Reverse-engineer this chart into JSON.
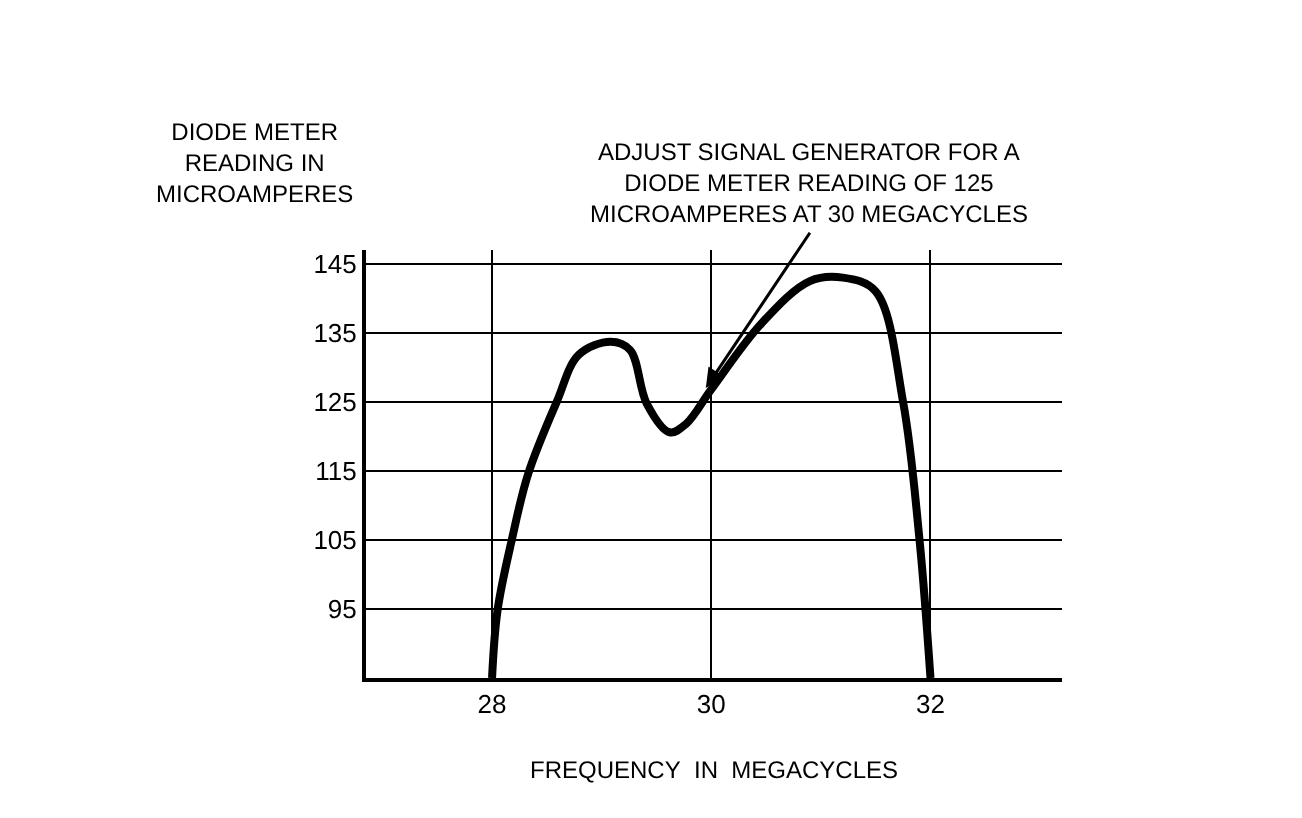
{
  "chart_data": {
    "type": "line",
    "xlabel": "FREQUENCY IN MEGACYCLES",
    "ylabel": "DIODE METER READING IN MICROAMPERES",
    "annotations": [
      {
        "text": "ADJUST SIGNAL GENERATOR FOR A DIODE METER READING OF 125 MICROAMPERES AT 30 MEGACYCLES",
        "x": 29.95,
        "y": 127
      }
    ],
    "x": [
      28,
      28.05,
      28.18,
      28.33,
      28.59,
      28.79,
      29.08,
      29.26,
      29.41,
      29.62,
      29.77,
      30,
      30.46,
      30.9,
      31.2,
      31.5,
      31.75,
      31.9,
      32
    ],
    "series": [
      {
        "color": "#000000",
        "values": [
          85,
          94.8,
          105,
          114.6,
          125,
          131.8,
          133.7,
          132.5,
          124.8,
          120.6,
          121.8,
          126.8,
          136.4,
          142.5,
          143,
          141,
          125,
          105,
          85
        ]
      }
    ],
    "xlim": [
      26.85,
      33.2
    ],
    "ylim": [
      85,
      147
    ],
    "xticks": [
      28,
      30,
      32
    ],
    "yticks": [
      {
        "value": 85,
        "label": null
      },
      95,
      105,
      115,
      125,
      135,
      145
    ],
    "grid": true,
    "marker": "none",
    "line_style": "solid"
  }
}
